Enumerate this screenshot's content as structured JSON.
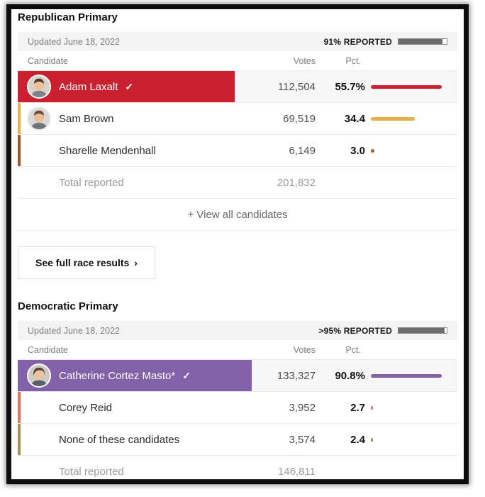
{
  "republican": {
    "title": "Republican Primary",
    "updated": "Updated June 18, 2022",
    "reported_label": "91% REPORTED",
    "reported_pct": 91,
    "columns": {
      "candidate": "Candidate",
      "votes": "Votes",
      "pct": "Pct."
    },
    "rows": [
      {
        "name": "Adam Laxalt",
        "winner_check": "✓",
        "votes": "112,504",
        "pct_label": "55.7%",
        "pct": 55.7,
        "color": "#cb2030"
      },
      {
        "name": "Sam Brown",
        "votes": "69,519",
        "pct_label": "34.4",
        "pct": 34.4,
        "color": "#e5b14b"
      },
      {
        "name": "Sharelle Mendenhall",
        "votes": "6,149",
        "pct_label": "3.0",
        "pct": 3.0,
        "color": "#9c5a2c"
      }
    ],
    "total_label": "Total reported",
    "total_votes": "201,832",
    "view_all_label": "+ View all candidates"
  },
  "see_full_results": {
    "label": "See full race results",
    "chevron": "›"
  },
  "democratic": {
    "title": "Democratic Primary",
    "updated": "Updated June 18, 2022",
    "reported_label": ">95% REPORTED",
    "reported_pct": 96,
    "columns": {
      "candidate": "Candidate",
      "votes": "Votes",
      "pct": "Pct."
    },
    "rows": [
      {
        "name": "Catherine Cortez Masto*",
        "winner_check": "✓",
        "votes": "133,327",
        "pct_label": "90.8%",
        "pct": 90.8,
        "color": "#8261a9"
      },
      {
        "name": "Corey Reid",
        "votes": "3,952",
        "pct_label": "2.7",
        "pct": 2.7,
        "color": "#e2745b"
      },
      {
        "name": "None of these candidates",
        "votes": "3,574",
        "pct_label": "2.4",
        "pct": 2.4,
        "color": "#a3914f"
      }
    ],
    "total_label": "Total reported",
    "total_votes": "146,811"
  }
}
